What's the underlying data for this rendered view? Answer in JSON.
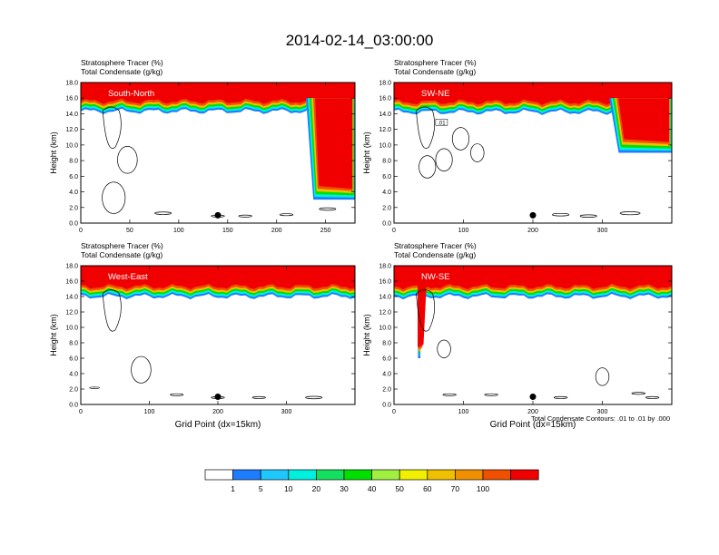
{
  "figure": {
    "title": "2014-02-14_03:00:00",
    "footnote": "Total Condensate Contours: .01 to .01 by .000"
  },
  "colorbar": {
    "levels": [
      "1",
      "5",
      "10",
      "20",
      "30",
      "40",
      "50",
      "60",
      "70",
      "100"
    ],
    "colors": [
      "#ffffff",
      "#1e7cff",
      "#1ec8ff",
      "#00f0e0",
      "#14e060",
      "#00e000",
      "#a0f040",
      "#f0f000",
      "#f0c000",
      "#f09000",
      "#f05000",
      "#f00000"
    ]
  },
  "chart_data": [
    {
      "type": "contour",
      "name": "south-north",
      "panel_label": "South-North",
      "left_title_line1": "Stratosphere Tracer   (%)",
      "left_title_line2": "Total Condensate   (g/kg)",
      "ylabel": "Height (km)",
      "xlabel": "",
      "xlim": [
        0,
        280
      ],
      "ylim": [
        0,
        18
      ],
      "xticks": [
        "0",
        "50",
        "100",
        "150",
        "200",
        "250"
      ],
      "xtick_values": [
        0,
        50,
        100,
        150,
        200,
        250
      ],
      "yticks": [
        "0.0",
        "2.0",
        "4.0",
        "6.0",
        "8.0",
        "10.0",
        "12.0",
        "14.0",
        "16.0",
        "18.0"
      ],
      "tropopause_km": 15.3,
      "intrusion": {
        "x_start": 230,
        "x_end": 280,
        "top_km": 16,
        "bottom_km": 3
      },
      "marker": {
        "x": 140,
        "y_km": 1.0
      },
      "contour_label": ""
    },
    {
      "type": "contour",
      "name": "sw-ne",
      "panel_label": "SW-NE",
      "left_title_line1": "Stratosphere Tracer   (%)",
      "left_title_line2": "Total Condensate   (g/kg)",
      "ylabel": "Height (km)",
      "xlabel": "",
      "xlim": [
        0,
        400
      ],
      "ylim": [
        0,
        18
      ],
      "xticks": [
        "0",
        "100",
        "200",
        "300"
      ],
      "xtick_values": [
        0,
        100,
        200,
        300
      ],
      "yticks": [
        "0.0",
        "2.0",
        "4.0",
        "6.0",
        "8.0",
        "10.0",
        "12.0",
        "14.0",
        "16.0",
        "18.0"
      ],
      "tropopause_km": 15.2,
      "intrusion": {
        "x_start": 310,
        "x_end": 400,
        "top_km": 16,
        "bottom_km": 9
      },
      "marker": {
        "x": 200,
        "y_km": 1.0
      },
      "contour_label": ".01"
    },
    {
      "type": "contour",
      "name": "west-east",
      "panel_label": "West-East",
      "left_title_line1": "Stratosphere Tracer   (%)",
      "left_title_line2": "Total Condensate   (g/kg)",
      "ylabel": "Height (km)",
      "xlabel": "Grid Point (dx=15km)",
      "xlim": [
        0,
        400
      ],
      "ylim": [
        0,
        18
      ],
      "xticks": [
        "0",
        "100",
        "200",
        "300"
      ],
      "xtick_values": [
        0,
        100,
        200,
        300
      ],
      "yticks": [
        "0.0",
        "2.0",
        "4.0",
        "6.0",
        "8.0",
        "10.0",
        "12.0",
        "14.0",
        "16.0",
        "18.0"
      ],
      "tropopause_km": 15.0,
      "intrusion": null,
      "marker": {
        "x": 200,
        "y_km": 1.0
      },
      "contour_label": ""
    },
    {
      "type": "contour",
      "name": "nw-se",
      "panel_label": "NW-SE",
      "left_title_line1": "Stratosphere Tracer   (%)",
      "left_title_line2": "Total Condensate   (g/kg)",
      "ylabel": "Height (km)",
      "xlabel": "Grid Point (dx=15km)",
      "xlim": [
        0,
        400
      ],
      "ylim": [
        0,
        18
      ],
      "xticks": [
        "0",
        "100",
        "200",
        "300"
      ],
      "xtick_values": [
        0,
        100,
        200,
        300
      ],
      "yticks": [
        "0.0",
        "2.0",
        "4.0",
        "6.0",
        "8.0",
        "10.0",
        "12.0",
        "14.0",
        "16.0",
        "18.0"
      ],
      "tropopause_km": 15.0,
      "intrusion": {
        "x_start": 34,
        "x_end": 38,
        "top_km": 16,
        "bottom_km": 6
      },
      "marker": {
        "x": 200,
        "y_km": 1.0
      },
      "contour_label": ""
    }
  ]
}
